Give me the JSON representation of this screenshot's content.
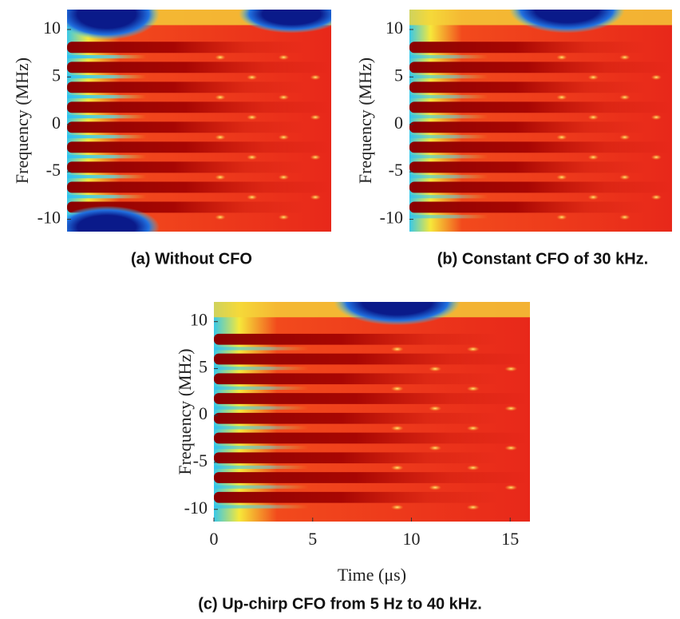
{
  "chart_data": [
    {
      "type": "heatmap",
      "ylabel": "Frequency (MHz)",
      "ylim": [
        -11.3,
        12.1
      ],
      "yticks": [
        -10,
        -5,
        0,
        5,
        10
      ],
      "caption": "(a) Without CFO"
    },
    {
      "type": "heatmap",
      "ylabel": "Frequency (MHz)",
      "ylim": [
        -11.3,
        12.1
      ],
      "yticks": [
        -10,
        -5,
        0,
        5,
        10
      ],
      "caption": "(b) Constant CFO of 30 kHz."
    },
    {
      "type": "heatmap",
      "ylabel": "Frequency (MHz)",
      "ylim": [
        -11.3,
        12.1
      ],
      "yticks": [
        -10,
        -5,
        0,
        5,
        10
      ],
      "xlabel": "Time (μs)",
      "xlim": [
        0,
        16
      ],
      "xticks": [
        0,
        5,
        10,
        15
      ],
      "caption": "(c) Up-chirp CFO from 5 Hz to 40 kHz."
    }
  ]
}
